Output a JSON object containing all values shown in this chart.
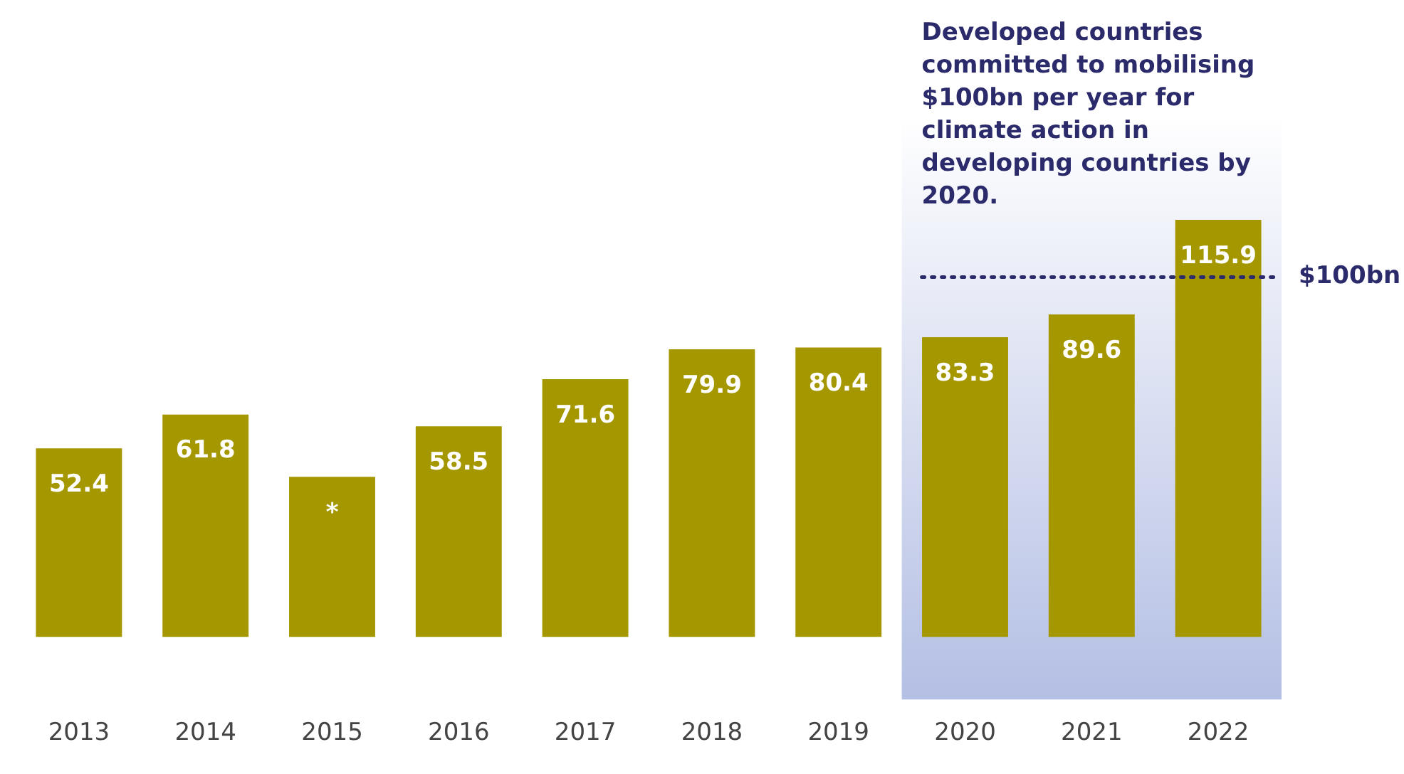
{
  "chart_data": {
    "type": "bar",
    "categories": [
      "2013",
      "2014",
      "2015",
      "2016",
      "2017",
      "2018",
      "2019",
      "2020",
      "2021",
      "2022"
    ],
    "values": [
      52.4,
      61.8,
      44.5,
      58.5,
      71.6,
      79.9,
      80.4,
      83.3,
      89.6,
      115.9
    ],
    "value_labels": [
      "52.4",
      "61.8",
      "*",
      "58.5",
      "71.6",
      "79.9",
      "80.4",
      "83.3",
      "89.6",
      "115.9"
    ],
    "color": "#a59700",
    "ylim": [
      -17.4,
      177
    ],
    "tick_labels": "x",
    "grid": false,
    "legend": false,
    "ref_lines": [
      {
        "axis": "y",
        "value": 100,
        "label": "$100bn",
        "color": "#2b2a6b",
        "line_style": "dotted"
      }
    ],
    "bands": [
      {
        "axis": "x",
        "from": "2020",
        "to": "2022",
        "color": "#b4bfe4"
      }
    ],
    "annotations": [
      "Developed countries committed to mobilising $100bn per year for climate action in developing countries by 2020."
    ]
  }
}
